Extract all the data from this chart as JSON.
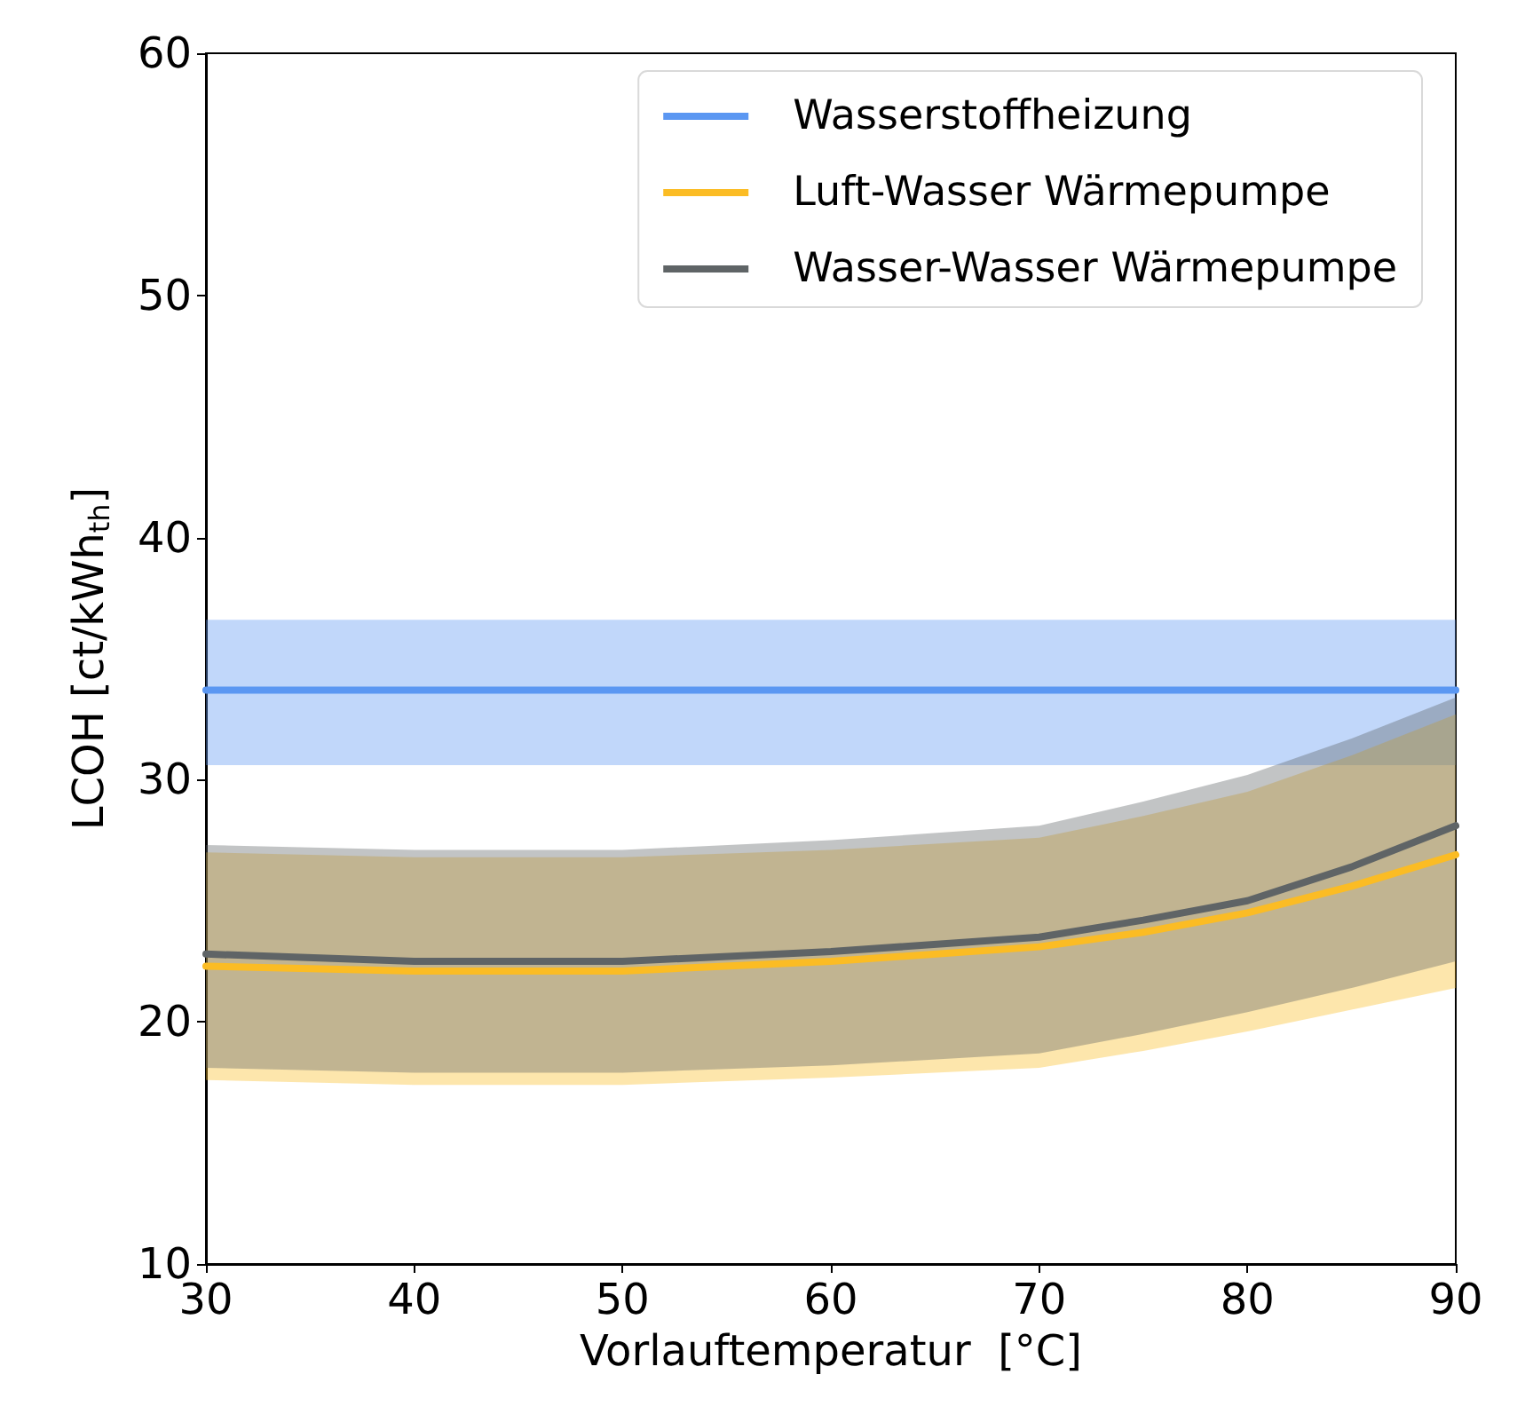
{
  "chart_data": {
    "type": "line",
    "xlabel": "Vorlauftemperatur  [°C]",
    "ylabel": "LCOH [ct/kWh$_{th}$]",
    "xlim": [
      30,
      90
    ],
    "xticks": [
      30,
      40,
      50,
      60,
      70,
      80,
      90
    ],
    "ylim": [
      10,
      60
    ],
    "yticks": [
      10,
      20,
      30,
      40,
      50,
      60
    ],
    "grid": false,
    "legend": "top right",
    "marker": "none",
    "line_style": "solid",
    "series": [
      {
        "name": "Wasserstoffheizung",
        "color": "#5b97f2",
        "x": [
          30,
          90
        ],
        "values": [
          33.7,
          33.7
        ],
        "lower": [
          30.6,
          30.6
        ],
        "upper": [
          36.6,
          36.6
        ]
      },
      {
        "name": "Luft-Wasser Wärmepumpe",
        "color": "#fbbc24",
        "x": [
          30,
          40,
          50,
          60,
          70,
          75,
          80,
          85,
          90
        ],
        "values": [
          22.3,
          22.1,
          22.1,
          22.5,
          23.1,
          23.7,
          24.5,
          25.6,
          26.9
        ],
        "lower": [
          17.6,
          17.4,
          17.4,
          17.7,
          18.1,
          18.8,
          19.6,
          20.5,
          21.4
        ],
        "upper": [
          27.0,
          26.8,
          26.8,
          27.1,
          27.6,
          28.5,
          29.5,
          31.0,
          32.7
        ]
      },
      {
        "name": "Wasser-Wasser Wärmepumpe",
        "color": "#5f6466",
        "x": [
          30,
          40,
          50,
          60,
          70,
          75,
          80,
          85,
          90
        ],
        "values": [
          22.8,
          22.5,
          22.5,
          22.9,
          23.5,
          24.2,
          25.0,
          26.4,
          28.1
        ],
        "lower": [
          18.1,
          17.9,
          17.9,
          18.2,
          18.7,
          19.5,
          20.4,
          21.4,
          22.5
        ],
        "upper": [
          27.3,
          27.1,
          27.1,
          27.5,
          28.1,
          29.1,
          30.2,
          31.7,
          33.4
        ]
      }
    ]
  }
}
